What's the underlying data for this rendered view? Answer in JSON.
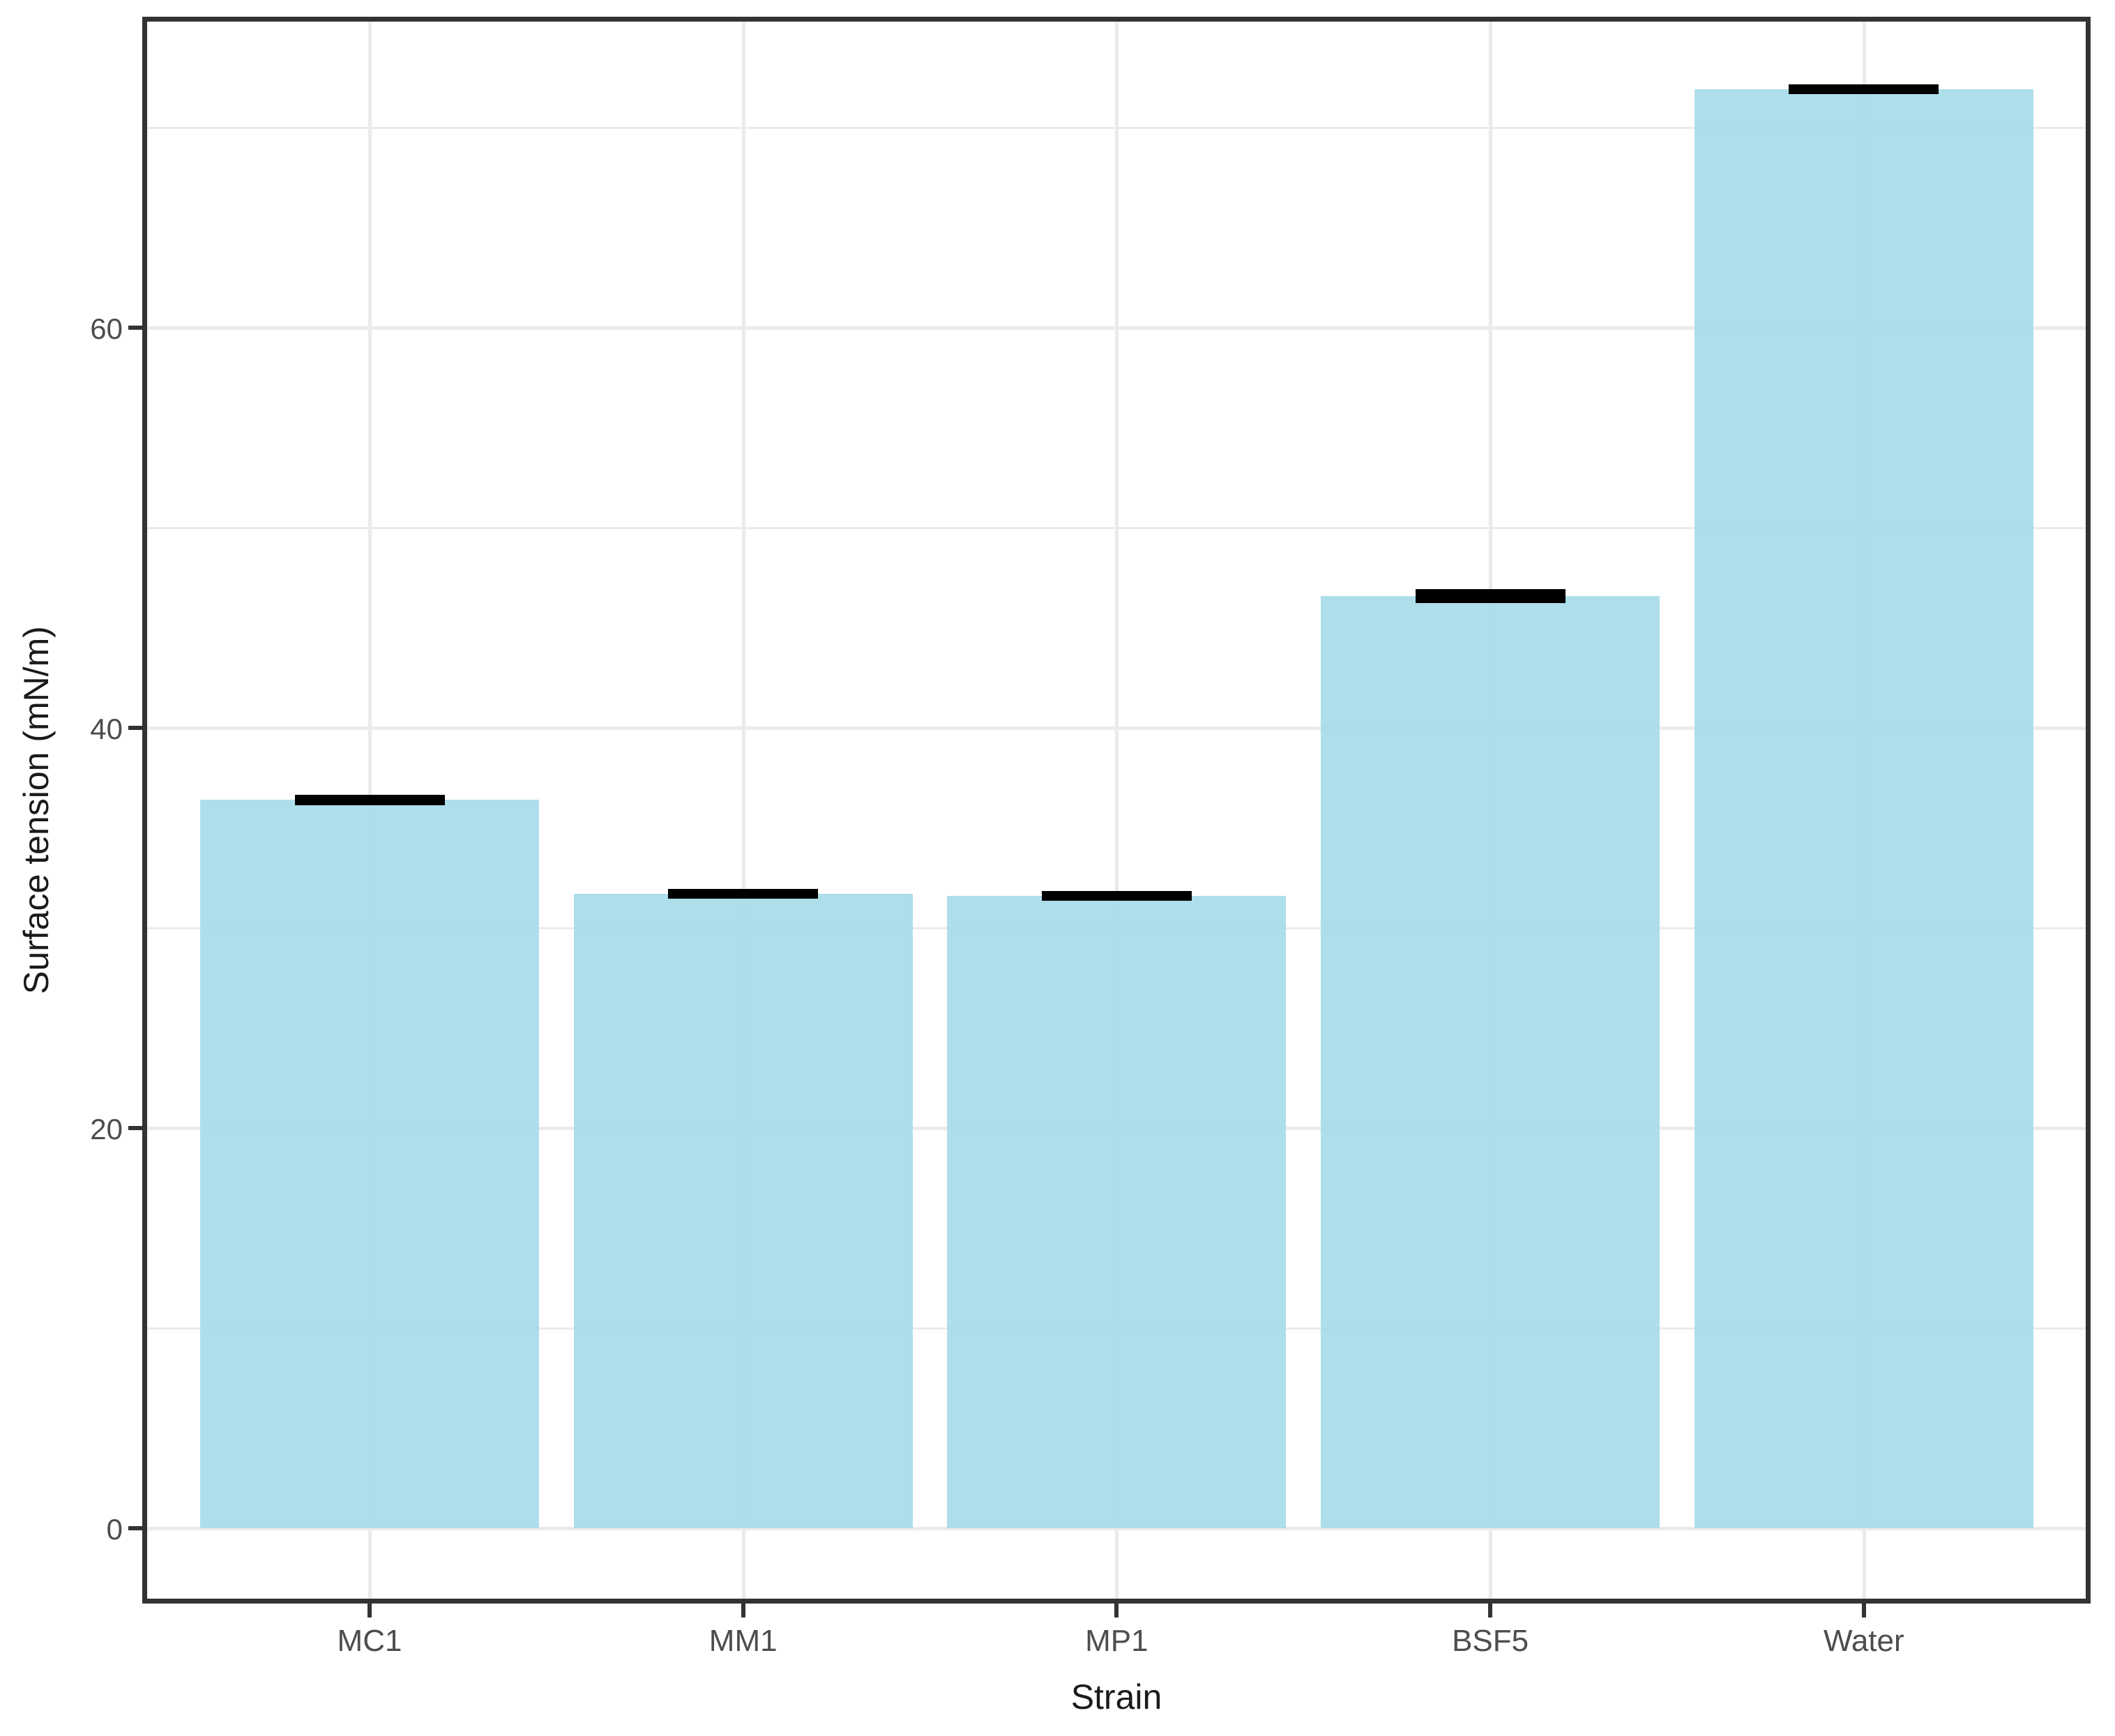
{
  "chart_data": {
    "type": "bar",
    "title": "",
    "categories": [
      "MC1",
      "MM1",
      "MP1",
      "BSF5",
      "Water"
    ],
    "values": [
      36.4,
      31.7,
      31.6,
      46.6,
      71.9
    ],
    "errors": [
      0.26,
      0.24,
      0.25,
      0.35,
      0.25
    ],
    "xlabel": "Strain",
    "ylabel": "Surface tension (mN/m)",
    "y_ticks": [
      0,
      20,
      40,
      60
    ],
    "y_minor_ticks": [
      10,
      30,
      50,
      70
    ],
    "ylim": [
      -3.5,
      75.3
    ],
    "bar_color": "#A9DBEA",
    "error_color": "#000000",
    "grid": "major+minor horizontal, major vertical at categories",
    "legend": "none",
    "panel_border_color": "#333333",
    "gridline_color": "#EBEBEB",
    "tick_label_color": "#4d4d4d",
    "axis_title_color": "#1a1a1a"
  }
}
